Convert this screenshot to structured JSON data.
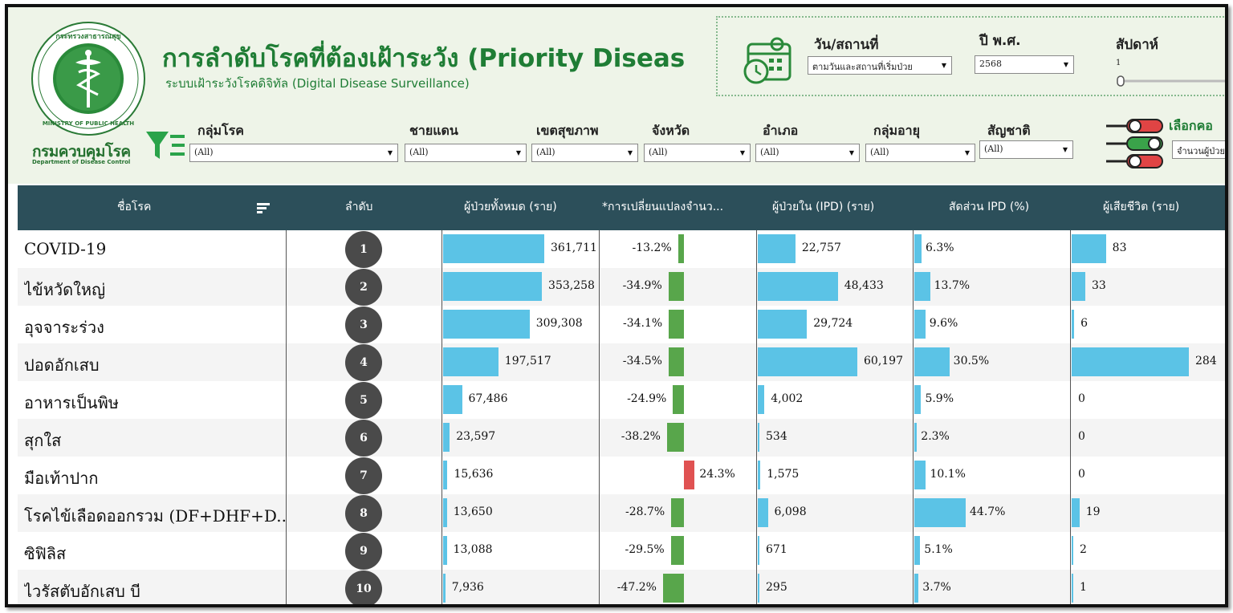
{
  "header": {
    "title": "การลำดับโรคที่ต้องเฝ้าระวัง (Priority Diseas",
    "subtitle": "ระบบเฝ้าระวังโรคดิจิทัล (Digital Disease Surveillance)",
    "org_name_th": "กรมควบคุมโรค",
    "org_name_en": "Department of Disease Control",
    "logo_text_en": "MINISTRY OF PUBLIC HEALTH"
  },
  "date_panel": {
    "date_place_label": "วัน/สถานที่",
    "date_place_value": "ตามวันและสถานที่เริ่มป่วย",
    "year_label": "ปี พ.ศ.",
    "year_value": "2568",
    "week_label": "สัปดาห์",
    "week_value": "1"
  },
  "filters": [
    {
      "label": "กลุ่มโรค",
      "value": "(All)"
    },
    {
      "label": "ชายแดน",
      "value": "(All)"
    },
    {
      "label": "เขตสุขภาพ",
      "value": "(All)"
    },
    {
      "label": "จังหวัด",
      "value": "(All)"
    },
    {
      "label": "อำเภอ",
      "value": "(All)"
    },
    {
      "label": "กลุ่มอายุ",
      "value": "(All)"
    },
    {
      "label": "สัญชาติ",
      "value": "(All)"
    }
  ],
  "selector": {
    "label": "เลือกคอ",
    "value": "จำนวนผู้ป่วย"
  },
  "columns": {
    "name": "ชื่อโรค",
    "rank": "ลำดับ",
    "total": "ผู้ป่วยทั้งหมด (ราย)",
    "change": "*การเปลี่ยนแปลงจำนว...",
    "ipd": "ผู้ป่วยใน (IPD) (ราย)",
    "ipd_ratio": "สัดส่วน IPD (%)",
    "deaths": "ผู้เสียชีวิต (ราย)"
  },
  "colors": {
    "bar": "#5bc3e6",
    "decrease": "#58a64b",
    "increase": "#e05252",
    "header_bg": "#2c4f5a"
  },
  "rows": [
    {
      "name": "COVID-19",
      "rank": "1",
      "total": 361711,
      "total_label": "361,711",
      "change": -13.2,
      "change_label": "-13.2%",
      "ipd": 22757,
      "ipd_label": "22,757",
      "ipd_ratio": 6.3,
      "ipd_ratio_label": "6.3%",
      "deaths": 83,
      "deaths_label": "83"
    },
    {
      "name": "ไข้หวัดใหญ่",
      "rank": "2",
      "total": 353258,
      "total_label": "353,258",
      "change": -34.9,
      "change_label": "-34.9%",
      "ipd": 48433,
      "ipd_label": "48,433",
      "ipd_ratio": 13.7,
      "ipd_ratio_label": "13.7%",
      "deaths": 33,
      "deaths_label": "33"
    },
    {
      "name": "อุจจาระร่วง",
      "rank": "3",
      "total": 309308,
      "total_label": "309,308",
      "change": -34.1,
      "change_label": "-34.1%",
      "ipd": 29724,
      "ipd_label": "29,724",
      "ipd_ratio": 9.6,
      "ipd_ratio_label": "9.6%",
      "deaths": 6,
      "deaths_label": "6"
    },
    {
      "name": "ปอดอักเสบ",
      "rank": "4",
      "total": 197517,
      "total_label": "197,517",
      "change": -34.5,
      "change_label": "-34.5%",
      "ipd": 60197,
      "ipd_label": "60,197",
      "ipd_ratio": 30.5,
      "ipd_ratio_label": "30.5%",
      "deaths": 284,
      "deaths_label": "284"
    },
    {
      "name": "อาหารเป็นพิษ",
      "rank": "5",
      "total": 67486,
      "total_label": "67,486",
      "change": -24.9,
      "change_label": "-24.9%",
      "ipd": 4002,
      "ipd_label": "4,002",
      "ipd_ratio": 5.9,
      "ipd_ratio_label": "5.9%",
      "deaths": 0,
      "deaths_label": "0"
    },
    {
      "name": "สุกใส",
      "rank": "6",
      "total": 23597,
      "total_label": "23,597",
      "change": -38.2,
      "change_label": "-38.2%",
      "ipd": 534,
      "ipd_label": "534",
      "ipd_ratio": 2.3,
      "ipd_ratio_label": "2.3%",
      "deaths": 0,
      "deaths_label": "0"
    },
    {
      "name": "มือเท้าปาก",
      "rank": "7",
      "total": 15636,
      "total_label": "15,636",
      "change": 24.3,
      "change_label": "24.3%",
      "ipd": 1575,
      "ipd_label": "1,575",
      "ipd_ratio": 10.1,
      "ipd_ratio_label": "10.1%",
      "deaths": 0,
      "deaths_label": "0"
    },
    {
      "name": "โรคไข้เลือดออกรวม (DF+DHF+D...",
      "rank": "8",
      "total": 13650,
      "total_label": "13,650",
      "change": -28.7,
      "change_label": "-28.7%",
      "ipd": 6098,
      "ipd_label": "6,098",
      "ipd_ratio": 44.7,
      "ipd_ratio_label": "44.7%",
      "deaths": 19,
      "deaths_label": "19"
    },
    {
      "name": "ซิฟิลิส",
      "rank": "9",
      "total": 13088,
      "total_label": "13,088",
      "change": -29.5,
      "change_label": "-29.5%",
      "ipd": 671,
      "ipd_label": "671",
      "ipd_ratio": 5.1,
      "ipd_ratio_label": "5.1%",
      "deaths": 2,
      "deaths_label": "2"
    },
    {
      "name": "ไวรัสตับอักเสบ บี",
      "rank": "10",
      "total": 7936,
      "total_label": "7,936",
      "change": -47.2,
      "change_label": "-47.2%",
      "ipd": 295,
      "ipd_label": "295",
      "ipd_ratio": 3.7,
      "ipd_ratio_label": "3.7%",
      "deaths": 1,
      "deaths_label": "1"
    }
  ]
}
